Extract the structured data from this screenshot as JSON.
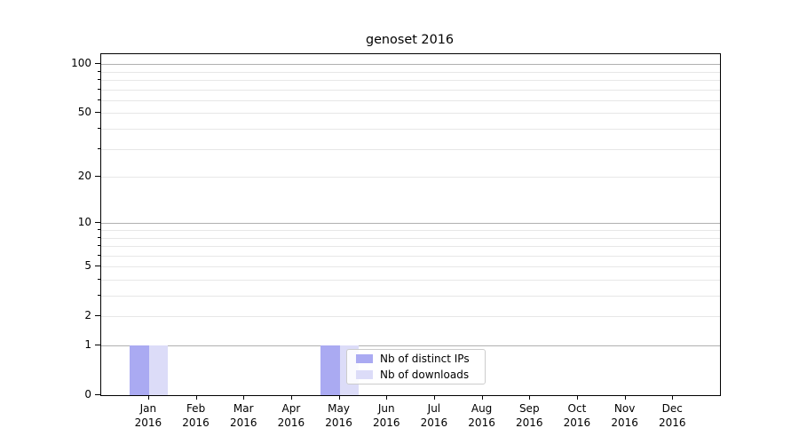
{
  "chart_data": {
    "type": "bar",
    "title": "genoset 2016",
    "categories": [
      "Jan",
      "Feb",
      "Mar",
      "Apr",
      "May",
      "Jun",
      "Jul",
      "Aug",
      "Sep",
      "Oct",
      "Nov",
      "Dec"
    ],
    "category_year": "2016",
    "series": [
      {
        "name": "Nb of distinct IPs",
        "color": "#aaaaf2",
        "values": [
          1,
          0,
          0,
          0,
          1,
          0,
          0,
          0,
          0,
          0,
          0,
          0
        ]
      },
      {
        "name": "Nb of downloads",
        "color": "#dcdcf8",
        "values": [
          1,
          0,
          0,
          0,
          1,
          0,
          0,
          0,
          0,
          0,
          0,
          0
        ]
      }
    ],
    "yscale": "log1p",
    "ylim": [
      0,
      115
    ],
    "y_ticks": [
      0,
      1,
      2,
      5,
      10,
      20,
      50,
      100
    ],
    "y_major_grid": [
      1,
      10,
      100
    ],
    "y_minor_grid": [
      2,
      3,
      4,
      5,
      6,
      7,
      8,
      9,
      20,
      30,
      40,
      50,
      60,
      70,
      80,
      90
    ],
    "grid": "horizontal, major+minor",
    "legend_position": "inside lower-center",
    "xlabel": "",
    "ylabel": ""
  },
  "colors": {
    "background": "#ffffff",
    "spine": "#000000",
    "text": "#000000",
    "major_grid": "#b0b0b0",
    "minor_grid": "#e7e7e7",
    "legend_border": "#cccccc"
  }
}
